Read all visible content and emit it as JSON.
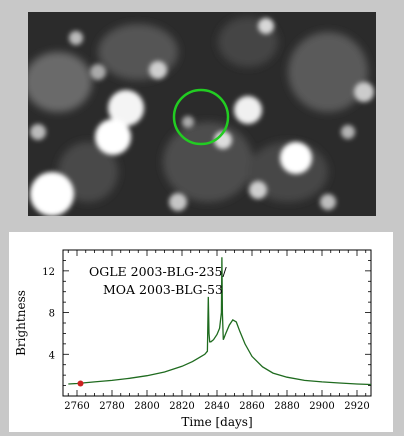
{
  "image": {
    "description_icon": "star-field-image",
    "marker_color": "#22cc22"
  },
  "chart_data": {
    "type": "line",
    "title": "",
    "annotation_lines": [
      "OGLE 2003-BLG-235/",
      "MOA 2003-BLG-53"
    ],
    "xlabel": "Time [days]",
    "ylabel": "Brightness",
    "xlim": [
      2752,
      2928
    ],
    "ylim": [
      0,
      14
    ],
    "x_ticks": [
      2760,
      2780,
      2800,
      2820,
      2840,
      2860,
      2880,
      2900,
      2920
    ],
    "x_tick_labels": [
      "2760",
      "2780",
      "2800",
      "2820",
      "2840",
      "2860",
      "2880",
      "2900",
      "2920"
    ],
    "y_ticks": [
      4,
      8,
      12
    ],
    "y_tick_labels": [
      "4",
      "8",
      "12"
    ],
    "grid": false,
    "line_color": "#1f6b1f",
    "marker_color": "#cc2222",
    "series": [
      {
        "values_x": [
          2755,
          2760,
          2770,
          2780,
          2790,
          2800,
          2810,
          2820,
          2826,
          2830,
          2833,
          2834.5,
          2835,
          2835.4,
          2835.8,
          2836.5,
          2838,
          2840,
          2841.5,
          2842.5,
          2842.8,
          2843.1,
          2843.6,
          2845,
          2847,
          2849,
          2851,
          2853,
          2856,
          2860,
          2866,
          2872,
          2880,
          2890,
          2900,
          2910,
          2920,
          2928
        ],
        "values_y": [
          1.15,
          1.2,
          1.35,
          1.5,
          1.7,
          1.95,
          2.3,
          2.85,
          3.3,
          3.7,
          4.0,
          4.3,
          9.5,
          6.0,
          5.2,
          5.2,
          5.4,
          5.9,
          6.5,
          8.0,
          13.3,
          8.0,
          5.4,
          6.0,
          6.8,
          7.3,
          7.1,
          6.2,
          5.0,
          3.8,
          2.8,
          2.2,
          1.8,
          1.5,
          1.35,
          1.25,
          1.15,
          1.1
        ]
      }
    ],
    "highlight_point": {
      "x": 2762,
      "y": 1.2
    }
  }
}
